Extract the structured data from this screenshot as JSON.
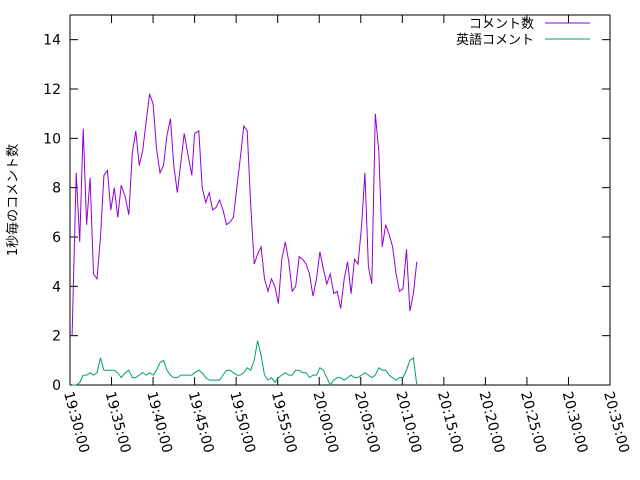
{
  "chart_data": {
    "type": "line",
    "title": "",
    "xlabel": "",
    "ylabel": "1秒毎のコメント数",
    "x_ticks": [
      "19:30:00",
      "19:35:00",
      "19:40:00",
      "19:45:00",
      "19:50:00",
      "19:55:00",
      "20:00:00",
      "20:05:00",
      "20:10:00",
      "20:15:00",
      "20:20:00",
      "20:25:00",
      "20:30:00",
      "20:35:00"
    ],
    "y_ticks": [
      "0",
      "2",
      "4",
      "6",
      "8",
      "10",
      "12",
      "14"
    ],
    "xlim": [
      "19:30:00",
      "20:35:00"
    ],
    "ylim": [
      0,
      15
    ],
    "legend_position": "top-right",
    "grid": false,
    "series": [
      {
        "name": "コメント数",
        "color": "#9400d3",
        "points": [
          [
            "19:30:15",
            2.0
          ],
          [
            "19:30:45",
            8.6
          ],
          [
            "19:31:10",
            5.8
          ],
          [
            "19:31:35",
            10.4
          ],
          [
            "19:32:00",
            6.5
          ],
          [
            "19:32:25",
            8.4
          ],
          [
            "19:32:50",
            4.5
          ],
          [
            "19:33:15",
            4.3
          ],
          [
            "19:33:40",
            6.0
          ],
          [
            "19:34:05",
            8.5
          ],
          [
            "19:34:30",
            8.7
          ],
          [
            "19:34:55",
            7.1
          ],
          [
            "19:35:20",
            8.0
          ],
          [
            "19:35:45",
            6.8
          ],
          [
            "19:36:10",
            8.1
          ],
          [
            "19:36:40",
            7.6
          ],
          [
            "19:37:05",
            6.9
          ],
          [
            "19:37:30",
            9.4
          ],
          [
            "19:37:55",
            10.3
          ],
          [
            "19:38:20",
            8.9
          ],
          [
            "19:38:45",
            9.5
          ],
          [
            "19:39:10",
            10.7
          ],
          [
            "19:39:35",
            11.8
          ],
          [
            "19:40:00",
            11.4
          ],
          [
            "19:40:25",
            9.6
          ],
          [
            "19:40:50",
            8.6
          ],
          [
            "19:41:15",
            8.9
          ],
          [
            "19:41:40",
            10.1
          ],
          [
            "19:42:05",
            10.8
          ],
          [
            "19:42:30",
            8.9
          ],
          [
            "19:42:55",
            7.8
          ],
          [
            "19:43:20",
            9.0
          ],
          [
            "19:43:45",
            10.2
          ],
          [
            "19:44:10",
            9.4
          ],
          [
            "19:44:40",
            8.5
          ],
          [
            "19:45:00",
            10.2
          ],
          [
            "19:45:30",
            10.3
          ],
          [
            "19:45:55",
            8.0
          ],
          [
            "19:46:20",
            7.4
          ],
          [
            "19:46:45",
            7.8
          ],
          [
            "19:47:10",
            7.1
          ],
          [
            "19:47:35",
            7.2
          ],
          [
            "19:48:00",
            7.5
          ],
          [
            "19:48:25",
            7.1
          ],
          [
            "19:48:50",
            6.5
          ],
          [
            "19:49:15",
            6.6
          ],
          [
            "19:49:40",
            6.8
          ],
          [
            "19:50:05",
            8.0
          ],
          [
            "19:50:30",
            9.2
          ],
          [
            "19:50:55",
            10.5
          ],
          [
            "19:51:20",
            10.3
          ],
          [
            "19:51:45",
            7.3
          ],
          [
            "19:52:10",
            4.9
          ],
          [
            "19:52:35",
            5.3
          ],
          [
            "19:53:00",
            5.6
          ],
          [
            "19:53:25",
            4.3
          ],
          [
            "19:53:50",
            3.8
          ],
          [
            "19:54:15",
            4.3
          ],
          [
            "19:54:40",
            4.0
          ],
          [
            "19:55:05",
            3.3
          ],
          [
            "19:55:30",
            5.1
          ],
          [
            "19:55:55",
            5.8
          ],
          [
            "19:56:20",
            5.0
          ],
          [
            "19:56:45",
            3.8
          ],
          [
            "19:57:10",
            4.0
          ],
          [
            "19:57:35",
            5.2
          ],
          [
            "19:58:00",
            5.1
          ],
          [
            "19:58:25",
            4.9
          ],
          [
            "19:58:50",
            4.5
          ],
          [
            "19:59:15",
            3.6
          ],
          [
            "19:59:40",
            4.3
          ],
          [
            "20:00:05",
            5.4
          ],
          [
            "20:00:30",
            4.7
          ],
          [
            "20:00:55",
            4.1
          ],
          [
            "20:01:20",
            4.5
          ],
          [
            "20:01:45",
            3.7
          ],
          [
            "20:02:10",
            3.8
          ],
          [
            "20:02:35",
            3.1
          ],
          [
            "20:03:00",
            4.3
          ],
          [
            "20:03:25",
            5.0
          ],
          [
            "20:03:50",
            3.7
          ],
          [
            "20:04:15",
            5.1
          ],
          [
            "20:04:40",
            4.9
          ],
          [
            "20:05:05",
            6.4
          ],
          [
            "20:05:30",
            8.6
          ],
          [
            "20:05:55",
            4.8
          ],
          [
            "20:06:20",
            4.1
          ],
          [
            "20:06:45",
            11.0
          ],
          [
            "20:07:10",
            9.5
          ],
          [
            "20:07:35",
            5.6
          ],
          [
            "20:08:00",
            6.5
          ],
          [
            "20:08:25",
            6.1
          ],
          [
            "20:08:50",
            5.6
          ],
          [
            "20:09:15",
            4.5
          ],
          [
            "20:09:40",
            3.8
          ],
          [
            "20:10:05",
            3.9
          ],
          [
            "20:10:30",
            5.5
          ],
          [
            "20:10:55",
            3.0
          ],
          [
            "20:11:20",
            3.7
          ],
          [
            "20:11:45",
            5.0
          ]
        ]
      },
      {
        "name": "英語コメント",
        "color": "#009e73",
        "points": [
          [
            "19:30:15",
            0.0
          ],
          [
            "19:30:45",
            0.0
          ],
          [
            "19:31:10",
            0.1
          ],
          [
            "19:31:35",
            0.4
          ],
          [
            "19:32:00",
            0.4
          ],
          [
            "19:32:25",
            0.5
          ],
          [
            "19:32:50",
            0.4
          ],
          [
            "19:33:15",
            0.5
          ],
          [
            "19:33:40",
            1.1
          ],
          [
            "19:34:05",
            0.6
          ],
          [
            "19:34:30",
            0.6
          ],
          [
            "19:34:55",
            0.6
          ],
          [
            "19:35:20",
            0.6
          ],
          [
            "19:35:45",
            0.5
          ],
          [
            "19:36:10",
            0.3
          ],
          [
            "19:36:40",
            0.5
          ],
          [
            "19:37:05",
            0.6
          ],
          [
            "19:37:30",
            0.3
          ],
          [
            "19:37:55",
            0.3
          ],
          [
            "19:38:20",
            0.4
          ],
          [
            "19:38:45",
            0.5
          ],
          [
            "19:39:10",
            0.4
          ],
          [
            "19:39:35",
            0.5
          ],
          [
            "19:40:00",
            0.4
          ],
          [
            "19:40:25",
            0.6
          ],
          [
            "19:40:50",
            0.9
          ],
          [
            "19:41:15",
            1.0
          ],
          [
            "19:41:40",
            0.6
          ],
          [
            "19:42:05",
            0.4
          ],
          [
            "19:42:30",
            0.3
          ],
          [
            "19:42:55",
            0.3
          ],
          [
            "19:43:20",
            0.4
          ],
          [
            "19:43:45",
            0.4
          ],
          [
            "19:44:10",
            0.4
          ],
          [
            "19:44:40",
            0.4
          ],
          [
            "19:45:00",
            0.5
          ],
          [
            "19:45:30",
            0.6
          ],
          [
            "19:45:55",
            0.5
          ],
          [
            "19:46:20",
            0.3
          ],
          [
            "19:46:45",
            0.2
          ],
          [
            "19:47:10",
            0.2
          ],
          [
            "19:47:35",
            0.2
          ],
          [
            "19:48:00",
            0.2
          ],
          [
            "19:48:25",
            0.4
          ],
          [
            "19:48:50",
            0.6
          ],
          [
            "19:49:15",
            0.6
          ],
          [
            "19:49:40",
            0.5
          ],
          [
            "19:50:05",
            0.4
          ],
          [
            "19:50:30",
            0.4
          ],
          [
            "19:50:55",
            0.5
          ],
          [
            "19:51:20",
            0.7
          ],
          [
            "19:51:45",
            0.6
          ],
          [
            "19:52:10",
            1.0
          ],
          [
            "19:52:35",
            1.8
          ],
          [
            "19:53:00",
            1.2
          ],
          [
            "19:53:25",
            0.4
          ],
          [
            "19:53:50",
            0.2
          ],
          [
            "19:54:15",
            0.3
          ],
          [
            "19:54:40",
            0.1
          ],
          [
            "19:55:05",
            0.3
          ],
          [
            "19:55:30",
            0.4
          ],
          [
            "19:55:55",
            0.5
          ],
          [
            "19:56:20",
            0.4
          ],
          [
            "19:56:45",
            0.4
          ],
          [
            "19:57:10",
            0.6
          ],
          [
            "19:57:35",
            0.6
          ],
          [
            "19:58:00",
            0.5
          ],
          [
            "19:58:25",
            0.5
          ],
          [
            "19:58:50",
            0.3
          ],
          [
            "19:59:15",
            0.4
          ],
          [
            "19:59:40",
            0.4
          ],
          [
            "20:00:05",
            0.7
          ],
          [
            "20:00:30",
            0.6
          ],
          [
            "20:00:55",
            0.3
          ],
          [
            "20:01:20",
            0.0
          ],
          [
            "20:01:45",
            0.2
          ],
          [
            "20:02:10",
            0.3
          ],
          [
            "20:02:35",
            0.3
          ],
          [
            "20:03:00",
            0.2
          ],
          [
            "20:03:25",
            0.3
          ],
          [
            "20:03:50",
            0.4
          ],
          [
            "20:04:15",
            0.3
          ],
          [
            "20:04:40",
            0.3
          ],
          [
            "20:05:05",
            0.4
          ],
          [
            "20:05:30",
            0.5
          ],
          [
            "20:05:55",
            0.4
          ],
          [
            "20:06:20",
            0.3
          ],
          [
            "20:06:45",
            0.4
          ],
          [
            "20:07:10",
            0.7
          ],
          [
            "20:07:35",
            0.6
          ],
          [
            "20:08:00",
            0.6
          ],
          [
            "20:08:25",
            0.4
          ],
          [
            "20:08:50",
            0.3
          ],
          [
            "20:09:15",
            0.2
          ],
          [
            "20:09:40",
            0.3
          ],
          [
            "20:10:05",
            0.3
          ],
          [
            "20:10:30",
            0.6
          ],
          [
            "20:10:55",
            1.0
          ],
          [
            "20:11:20",
            1.1
          ],
          [
            "20:11:45",
            0.0
          ]
        ]
      }
    ]
  }
}
